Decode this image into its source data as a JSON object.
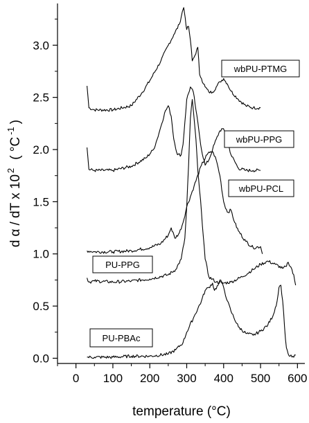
{
  "chart_data": {
    "type": "line",
    "xlabel": "temperature (°C)",
    "ylabel": "d α / dT  x  10 2  ( °C -1 )",
    "ylabel_parts": {
      "a": "d",
      "b": "α",
      "c": "/ dT  x  10",
      "d": "2",
      "e": "( °C",
      "f": "-1",
      "g": ")"
    },
    "xlim": [
      -50,
      620
    ],
    "ylim": [
      -0.05,
      3.4
    ],
    "x_ticks": [
      0,
      100,
      200,
      300,
      400,
      500,
      600
    ],
    "y_ticks": [
      0.0,
      0.5,
      1.0,
      1.5,
      2.0,
      2.5,
      3.0
    ],
    "x_tick_labels": [
      "0",
      "100",
      "200",
      "300",
      "400",
      "500",
      "600"
    ],
    "y_tick_labels": [
      "0.0",
      "0.5",
      "1.0",
      "1.5",
      "2.0",
      "2.5",
      "3.0"
    ],
    "grid": false,
    "line_color": "#000000",
    "series": [
      {
        "name": "wbPU-PTMG",
        "x": [
          30,
          35,
          50,
          100,
          150,
          180,
          200,
          230,
          250,
          265,
          280,
          288,
          292,
          296,
          300,
          305,
          310,
          315,
          322,
          330,
          335,
          340,
          350,
          360,
          370,
          380,
          390,
          400,
          410,
          420,
          440,
          460,
          480,
          500
        ],
        "y": [
          2.61,
          2.4,
          2.38,
          2.38,
          2.42,
          2.55,
          2.66,
          2.85,
          3.0,
          3.1,
          3.2,
          3.32,
          3.36,
          3.26,
          3.15,
          3.18,
          3.05,
          2.85,
          2.9,
          2.98,
          2.72,
          2.68,
          2.6,
          2.55,
          2.55,
          2.6,
          2.65,
          2.68,
          2.63,
          2.56,
          2.48,
          2.42,
          2.4,
          2.4
        ]
      },
      {
        "name": "wbPU-PPG",
        "x": [
          30,
          35,
          50,
          100,
          150,
          190,
          210,
          220,
          230,
          240,
          250,
          258,
          265,
          275,
          285,
          290,
          300,
          310,
          318,
          325,
          333,
          340,
          350,
          360,
          370,
          380,
          390,
          397,
          405,
          420,
          440,
          460,
          480,
          500
        ],
        "y": [
          2.02,
          1.81,
          1.8,
          1.8,
          1.84,
          1.92,
          2.0,
          2.1,
          2.22,
          2.35,
          2.42,
          2.32,
          2.1,
          1.95,
          1.95,
          2.05,
          2.48,
          2.6,
          2.55,
          2.38,
          2.18,
          2.0,
          1.85,
          1.9,
          2.0,
          2.1,
          2.18,
          2.2,
          2.16,
          1.95,
          1.82,
          1.8,
          1.8,
          1.8
        ]
      },
      {
        "name": "wbPU-PCL",
        "x": [
          30,
          50,
          100,
          150,
          200,
          230,
          250,
          258,
          268,
          280,
          290,
          300,
          320,
          340,
          355,
          365,
          372,
          380,
          390,
          400,
          410,
          420,
          430,
          440,
          460,
          480,
          500,
          505
        ],
        "y": [
          1.03,
          1.02,
          1.02,
          1.03,
          1.06,
          1.1,
          1.18,
          1.25,
          1.15,
          1.2,
          1.3,
          1.45,
          1.65,
          1.85,
          1.95,
          1.98,
          1.97,
          1.9,
          1.75,
          1.5,
          1.4,
          1.42,
          1.3,
          1.22,
          1.12,
          1.06,
          1.07,
          1.0
        ]
      },
      {
        "name": "PU-PPG",
        "x": [
          30,
          35,
          50,
          100,
          150,
          200,
          250,
          270,
          285,
          295,
          300,
          305,
          310,
          315,
          320,
          325,
          330,
          340,
          350,
          360,
          380,
          400,
          420,
          450,
          480,
          500,
          520,
          540,
          560,
          570,
          575,
          580,
          585,
          590,
          595
        ],
        "y": [
          0.77,
          0.73,
          0.74,
          0.73,
          0.74,
          0.76,
          0.8,
          0.85,
          0.95,
          1.15,
          1.45,
          1.85,
          2.3,
          2.48,
          2.3,
          2.1,
          1.8,
          1.4,
          0.95,
          0.78,
          0.73,
          0.72,
          0.73,
          0.78,
          0.85,
          0.9,
          0.93,
          0.9,
          0.86,
          0.88,
          0.92,
          0.88,
          0.85,
          0.8,
          0.7
        ]
      },
      {
        "name": "PU-PBAc",
        "x": [
          30,
          50,
          100,
          150,
          200,
          250,
          270,
          290,
          300,
          320,
          340,
          350,
          360,
          370,
          375,
          385,
          390,
          395,
          400,
          410,
          420,
          440,
          460,
          480,
          500,
          520,
          535,
          545,
          550,
          555,
          560,
          565,
          570,
          575,
          580,
          590,
          595
        ],
        "y": [
          0.01,
          0.01,
          0.01,
          0.02,
          0.02,
          0.04,
          0.08,
          0.15,
          0.25,
          0.4,
          0.55,
          0.65,
          0.68,
          0.72,
          0.65,
          0.7,
          0.75,
          0.72,
          0.68,
          0.55,
          0.45,
          0.3,
          0.24,
          0.22,
          0.26,
          0.32,
          0.42,
          0.55,
          0.68,
          0.7,
          0.55,
          0.3,
          0.1,
          0.04,
          0.02,
          0.01,
          0.03
        ]
      }
    ],
    "annotations": [
      "wbPU-PTMG",
      "wbPU-PPG",
      "wbPU-PCL",
      "PU-PPG",
      "PU-PBAc"
    ]
  }
}
